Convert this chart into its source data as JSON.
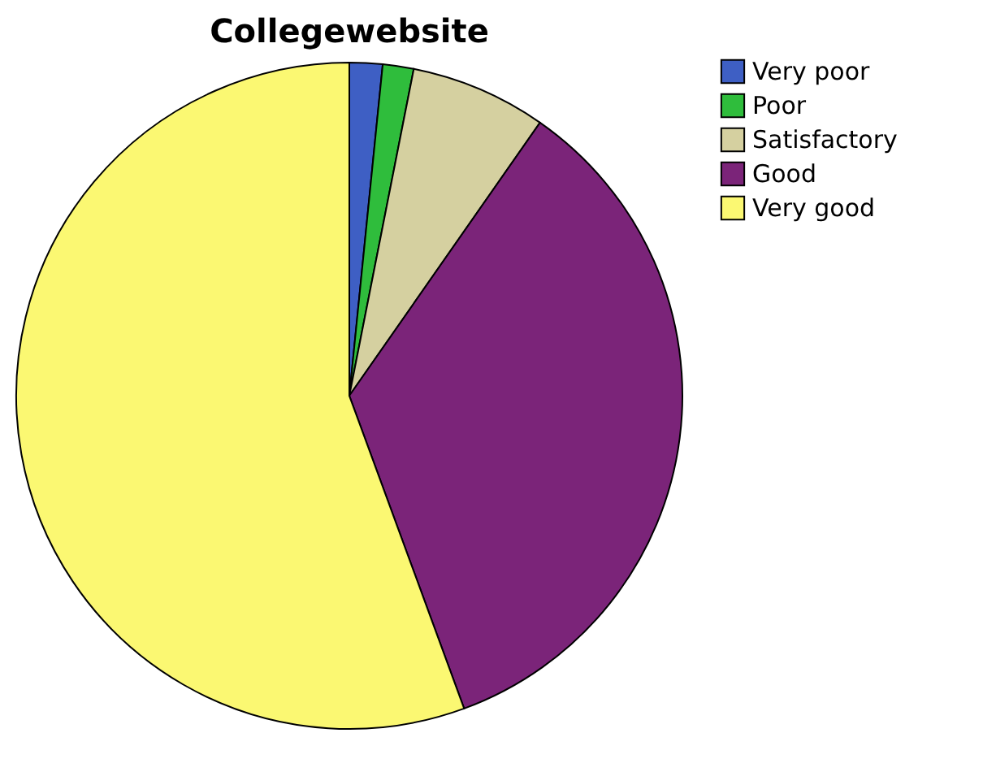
{
  "chart_data": {
    "type": "pie",
    "title": "Collegewebsite",
    "categories": [
      "Very poor",
      "Poor",
      "Satisfactory",
      "Good",
      "Very good"
    ],
    "values": [
      1.6,
      1.5,
      6.6,
      34.7,
      55.6
    ],
    "colors": [
      "#3e5fc4",
      "#2fbd3c",
      "#d5d0a0",
      "#7b2479",
      "#fbf872"
    ],
    "legend": "right"
  }
}
